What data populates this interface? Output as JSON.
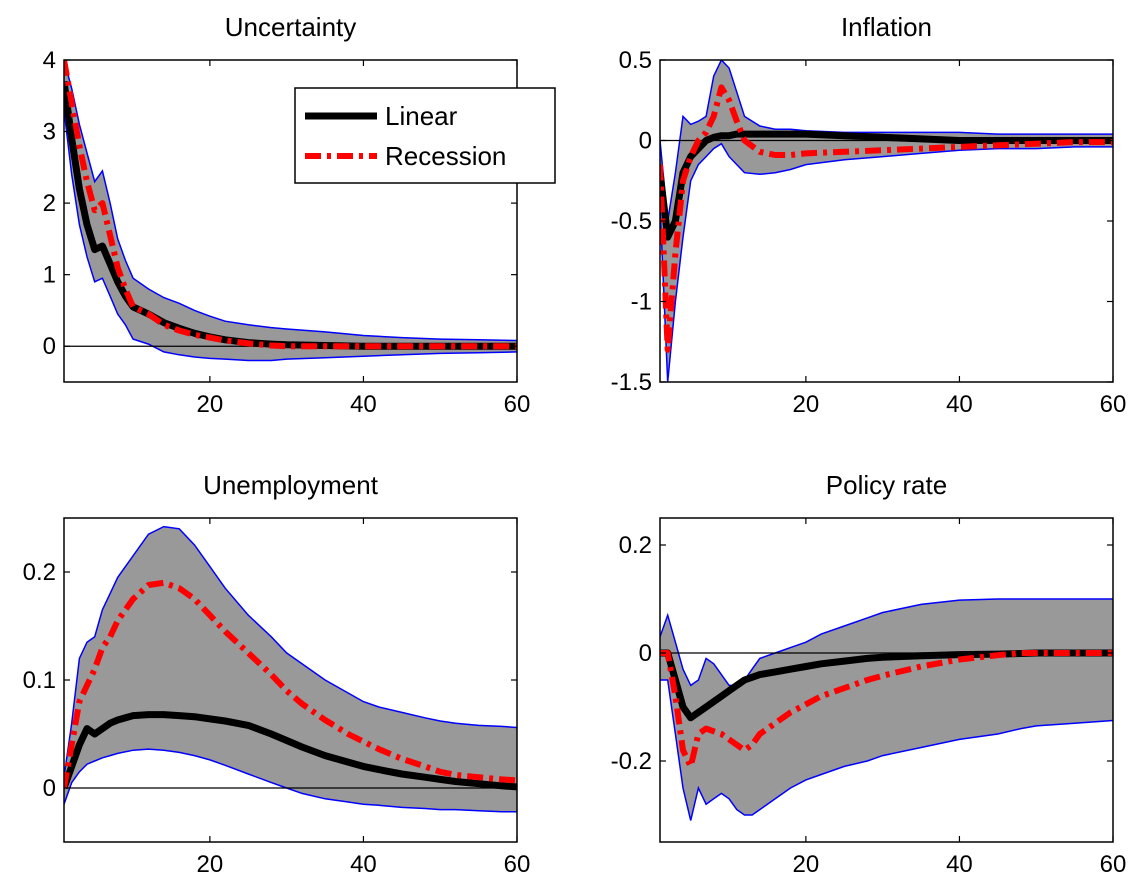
{
  "chart_data": [
    {
      "type": "line",
      "title": "Uncertainty",
      "xlim": [
        1,
        60
      ],
      "ylim": [
        -0.5,
        4
      ],
      "xticks": [
        20,
        40,
        60
      ],
      "yticks": [
        0,
        1,
        2,
        3,
        4
      ],
      "grid": false,
      "zero_line": true,
      "legend": {
        "placement": "top-right",
        "entries": [
          "Linear",
          "Recession"
        ]
      },
      "x": [
        1,
        2,
        3,
        4,
        5,
        6,
        7,
        8,
        9,
        10,
        12,
        14,
        16,
        18,
        20,
        22,
        25,
        28,
        30,
        35,
        40,
        45,
        50,
        55,
        60
      ],
      "series": [
        {
          "name": "Linear",
          "color": "#000000",
          "style": "solid",
          "values": [
            3.7,
            2.9,
            2.2,
            1.7,
            1.35,
            1.4,
            1.15,
            0.9,
            0.7,
            0.55,
            0.45,
            0.33,
            0.25,
            0.18,
            0.13,
            0.09,
            0.05,
            0.03,
            0.02,
            0.01,
            0.0,
            0.0,
            0.0,
            0.0,
            0.0
          ]
        },
        {
          "name": "Recession",
          "color": "#ff0000",
          "style": "dashdot",
          "values": [
            4.0,
            3.4,
            2.8,
            2.3,
            1.9,
            2.0,
            1.55,
            1.1,
            0.8,
            0.55,
            0.45,
            0.3,
            0.22,
            0.16,
            0.12,
            0.08,
            0.04,
            0.01,
            0.0,
            0.0,
            0.0,
            0.0,
            0.0,
            0.0,
            0.0
          ]
        }
      ],
      "band": {
        "color": "#999999",
        "edge_color": "#0000ff",
        "lower": [
          3.3,
          2.4,
          1.7,
          1.25,
          0.9,
          0.95,
          0.7,
          0.45,
          0.3,
          0.1,
          0.03,
          -0.08,
          -0.12,
          -0.15,
          -0.17,
          -0.18,
          -0.2,
          -0.2,
          -0.18,
          -0.16,
          -0.14,
          -0.12,
          -0.1,
          -0.09,
          -0.08
        ],
        "upper": [
          4.0,
          3.6,
          3.1,
          2.7,
          2.3,
          2.45,
          2.0,
          1.5,
          1.2,
          0.95,
          0.8,
          0.68,
          0.6,
          0.5,
          0.42,
          0.35,
          0.3,
          0.26,
          0.24,
          0.2,
          0.15,
          0.12,
          0.1,
          0.09,
          0.08
        ]
      }
    },
    {
      "type": "line",
      "title": "Inflation",
      "xlim": [
        1,
        60
      ],
      "ylim": [
        -1.5,
        0.5
      ],
      "xticks": [
        20,
        40,
        60
      ],
      "yticks": [
        -1.5,
        -1,
        -0.5,
        0,
        0.5
      ],
      "ytick_labels": [
        "-1.5",
        "-1",
        "-0.5",
        "0",
        "0.5"
      ],
      "grid": false,
      "zero_line": true,
      "x": [
        1,
        2,
        3,
        4,
        5,
        6,
        7,
        8,
        9,
        10,
        11,
        12,
        14,
        16,
        18,
        20,
        25,
        30,
        35,
        40,
        45,
        50,
        55,
        60
      ],
      "series": [
        {
          "name": "Linear",
          "color": "#000000",
          "style": "solid",
          "values": [
            -0.2,
            -0.6,
            -0.5,
            -0.2,
            -0.1,
            -0.05,
            0.0,
            0.02,
            0.03,
            0.03,
            0.04,
            0.04,
            0.04,
            0.04,
            0.04,
            0.04,
            0.03,
            0.02,
            0.01,
            0.0,
            0.0,
            0.0,
            0.0,
            0.0
          ]
        },
        {
          "name": "Recession",
          "color": "#ff0000",
          "style": "dashdot",
          "values": [
            -0.15,
            -1.3,
            -0.7,
            -0.25,
            -0.1,
            0.0,
            0.05,
            0.15,
            0.33,
            0.25,
            0.12,
            0.0,
            -0.07,
            -0.09,
            -0.09,
            -0.08,
            -0.07,
            -0.06,
            -0.05,
            -0.04,
            -0.03,
            -0.02,
            -0.01,
            -0.01
          ]
        }
      ],
      "band": {
        "color": "#999999",
        "edge_color": "#0000ff",
        "lower": [
          -0.4,
          -1.5,
          -1.0,
          -0.6,
          -0.25,
          -0.15,
          -0.1,
          -0.05,
          -0.02,
          -0.1,
          -0.15,
          -0.2,
          -0.21,
          -0.2,
          -0.18,
          -0.15,
          -0.12,
          -0.1,
          -0.08,
          -0.06,
          -0.05,
          -0.05,
          -0.04,
          -0.04
        ],
        "upper": [
          0.0,
          -0.5,
          -0.2,
          0.15,
          0.1,
          0.12,
          0.15,
          0.4,
          0.5,
          0.45,
          0.3,
          0.15,
          0.09,
          0.07,
          0.07,
          0.06,
          0.05,
          0.05,
          0.05,
          0.05,
          0.04,
          0.04,
          0.04,
          0.04
        ]
      }
    },
    {
      "type": "line",
      "title": "Unemployment",
      "xlim": [
        1,
        60
      ],
      "ylim": [
        -0.05,
        0.25
      ],
      "xticks": [
        20,
        40,
        60
      ],
      "yticks": [
        0,
        0.1,
        0.2
      ],
      "grid": false,
      "zero_line": true,
      "x": [
        1,
        2,
        3,
        4,
        5,
        6,
        7,
        8,
        10,
        12,
        14,
        16,
        18,
        20,
        22,
        25,
        28,
        30,
        32,
        35,
        38,
        40,
        42,
        45,
        48,
        50,
        52,
        55,
        58,
        60
      ],
      "series": [
        {
          "name": "Linear",
          "color": "#000000",
          "style": "solid",
          "values": [
            0.0,
            0.02,
            0.04,
            0.055,
            0.05,
            0.055,
            0.06,
            0.063,
            0.067,
            0.068,
            0.068,
            0.067,
            0.066,
            0.064,
            0.062,
            0.058,
            0.05,
            0.044,
            0.038,
            0.03,
            0.024,
            0.02,
            0.017,
            0.013,
            0.01,
            0.008,
            0.006,
            0.004,
            0.002,
            0.001
          ]
        },
        {
          "name": "Recession",
          "color": "#ff0000",
          "style": "dashdot",
          "values": [
            0.0,
            0.04,
            0.08,
            0.095,
            0.11,
            0.13,
            0.14,
            0.155,
            0.175,
            0.188,
            0.19,
            0.185,
            0.175,
            0.16,
            0.145,
            0.125,
            0.105,
            0.09,
            0.078,
            0.063,
            0.05,
            0.043,
            0.036,
            0.027,
            0.02,
            0.015,
            0.012,
            0.01,
            0.008,
            0.007
          ]
        }
      ],
      "band": {
        "color": "#999999",
        "edge_color": "#0000ff",
        "lower": [
          -0.015,
          0.005,
          0.015,
          0.022,
          0.025,
          0.028,
          0.03,
          0.032,
          0.035,
          0.036,
          0.035,
          0.033,
          0.03,
          0.026,
          0.021,
          0.013,
          0.005,
          0.0,
          -0.005,
          -0.01,
          -0.013,
          -0.015,
          -0.016,
          -0.018,
          -0.019,
          -0.02,
          -0.02,
          -0.021,
          -0.022,
          -0.022
        ],
        "upper": [
          0.01,
          0.06,
          0.12,
          0.135,
          0.14,
          0.165,
          0.18,
          0.195,
          0.215,
          0.235,
          0.242,
          0.24,
          0.225,
          0.205,
          0.185,
          0.16,
          0.14,
          0.125,
          0.115,
          0.1,
          0.088,
          0.08,
          0.075,
          0.07,
          0.065,
          0.062,
          0.06,
          0.058,
          0.057,
          0.056
        ]
      }
    },
    {
      "type": "line",
      "title": "Policy rate",
      "xlim": [
        1,
        60
      ],
      "ylim": [
        -0.35,
        0.25
      ],
      "xticks": [
        20,
        40,
        60
      ],
      "yticks": [
        -0.2,
        0,
        0.2
      ],
      "grid": false,
      "zero_line": true,
      "x": [
        1,
        2,
        3,
        4,
        5,
        6,
        7,
        8,
        9,
        10,
        11,
        12,
        13,
        14,
        16,
        18,
        20,
        22,
        25,
        28,
        30,
        35,
        40,
        45,
        48,
        50,
        55,
        60
      ],
      "series": [
        {
          "name": "Linear",
          "color": "#000000",
          "style": "solid",
          "values": [
            0.0,
            0.0,
            -0.05,
            -0.1,
            -0.12,
            -0.11,
            -0.1,
            -0.09,
            -0.08,
            -0.07,
            -0.06,
            -0.05,
            -0.045,
            -0.04,
            -0.035,
            -0.03,
            -0.025,
            -0.02,
            -0.015,
            -0.01,
            -0.008,
            -0.005,
            -0.003,
            -0.002,
            -0.001,
            0.0,
            0.0,
            0.0
          ]
        },
        {
          "name": "Recession",
          "color": "#ff0000",
          "style": "dashdot",
          "values": [
            0.0,
            0.0,
            -0.08,
            -0.18,
            -0.21,
            -0.15,
            -0.14,
            -0.145,
            -0.15,
            -0.16,
            -0.17,
            -0.18,
            -0.17,
            -0.15,
            -0.13,
            -0.11,
            -0.095,
            -0.08,
            -0.065,
            -0.05,
            -0.042,
            -0.025,
            -0.012,
            -0.004,
            0.0,
            0.0,
            0.0,
            0.0
          ]
        }
      ],
      "band": {
        "color": "#999999",
        "edge_color": "#0000ff",
        "lower": [
          -0.05,
          -0.05,
          -0.15,
          -0.25,
          -0.31,
          -0.25,
          -0.28,
          -0.27,
          -0.26,
          -0.27,
          -0.29,
          -0.3,
          -0.3,
          -0.29,
          -0.27,
          -0.25,
          -0.235,
          -0.225,
          -0.21,
          -0.2,
          -0.19,
          -0.175,
          -0.16,
          -0.15,
          -0.14,
          -0.135,
          -0.13,
          -0.125
        ],
        "upper": [
          0.03,
          0.07,
          0.02,
          -0.03,
          -0.06,
          -0.05,
          -0.01,
          -0.02,
          -0.04,
          -0.06,
          -0.06,
          -0.05,
          -0.03,
          -0.01,
          0.0,
          0.01,
          0.02,
          0.035,
          0.05,
          0.065,
          0.075,
          0.09,
          0.098,
          0.1,
          0.1,
          0.1,
          0.1,
          0.1
        ]
      }
    }
  ]
}
